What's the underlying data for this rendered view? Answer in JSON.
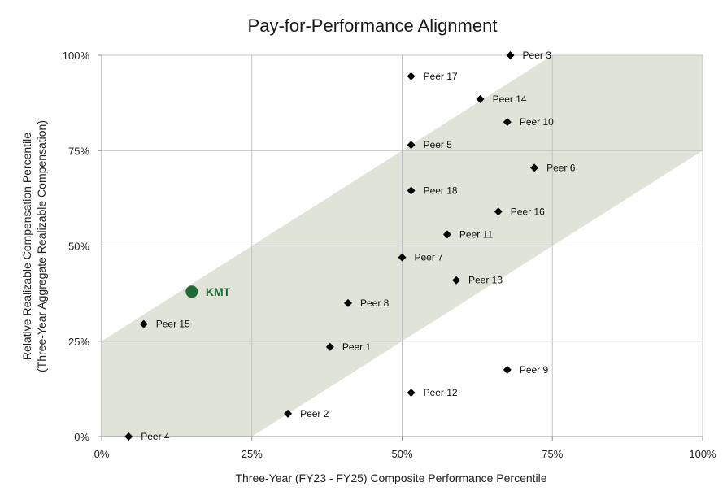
{
  "chart_data": {
    "type": "scatter",
    "title": "Pay-for-Performance Alignment",
    "xlabel": "Three-Year (FY23 - FY25) Composite Performance Percentile",
    "ylabel_line1": "Relative Realizable Compensation Percentile",
    "ylabel_line2": "(Three-Year Aggregate Realizable Compensation)",
    "xlim": [
      0,
      100
    ],
    "ylim": [
      0,
      100
    ],
    "x_ticks": [
      {
        "value": 0,
        "label": "0%"
      },
      {
        "value": 25,
        "label": "25%"
      },
      {
        "value": 50,
        "label": "50%"
      },
      {
        "value": 75,
        "label": "75%"
      },
      {
        "value": 100,
        "label": "100%"
      }
    ],
    "y_ticks": [
      {
        "value": 0,
        "label": "0%"
      },
      {
        "value": 25,
        "label": "25%"
      },
      {
        "value": 50,
        "label": "50%"
      },
      {
        "value": 75,
        "label": "75%"
      },
      {
        "value": 100,
        "label": "100%"
      }
    ],
    "grid": true,
    "alignment_band": {
      "polygon": [
        [
          0,
          0
        ],
        [
          25,
          0
        ],
        [
          100,
          75
        ],
        [
          100,
          100
        ],
        [
          75,
          100
        ],
        [
          0,
          25
        ]
      ],
      "color": "#dfe3d8"
    },
    "highlight": {
      "name": "KMT",
      "x": 15,
      "y": 38,
      "color": "#1e6b35"
    },
    "marker_color": "#000000",
    "points": [
      {
        "name": "Peer 1",
        "x": 38,
        "y": 23.5
      },
      {
        "name": "Peer 2",
        "x": 31,
        "y": 6
      },
      {
        "name": "Peer 3",
        "x": 68,
        "y": 100
      },
      {
        "name": "Peer 4",
        "x": 4.5,
        "y": 0
      },
      {
        "name": "Peer 5",
        "x": 51.5,
        "y": 76.5
      },
      {
        "name": "Peer 6",
        "x": 72,
        "y": 70.5
      },
      {
        "name": "Peer 7",
        "x": 50,
        "y": 47
      },
      {
        "name": "Peer 8",
        "x": 41,
        "y": 35
      },
      {
        "name": "Peer 9",
        "x": 67.5,
        "y": 17.5
      },
      {
        "name": "Peer 10",
        "x": 67.5,
        "y": 82.5
      },
      {
        "name": "Peer 11",
        "x": 57.5,
        "y": 53
      },
      {
        "name": "Peer 12",
        "x": 51.5,
        "y": 11.5
      },
      {
        "name": "Peer 13",
        "x": 59,
        "y": 41
      },
      {
        "name": "Peer 14",
        "x": 63,
        "y": 88.5
      },
      {
        "name": "Peer 15",
        "x": 7,
        "y": 29.5
      },
      {
        "name": "Peer 16",
        "x": 66,
        "y": 59
      },
      {
        "name": "Peer 17",
        "x": 51.5,
        "y": 94.5
      },
      {
        "name": "Peer 18",
        "x": 51.5,
        "y": 64.5
      }
    ]
  }
}
